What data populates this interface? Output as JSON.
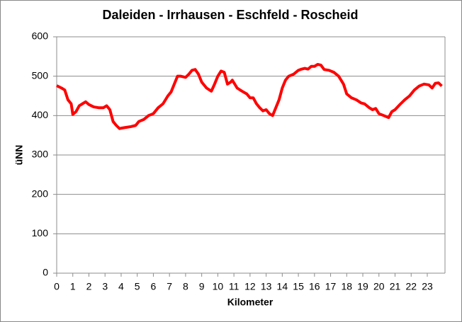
{
  "chart_data": {
    "type": "line",
    "title": "Daleiden - Irrhausen - Eschfeld - Roscheid",
    "x_label": "Kilometer",
    "y_label": "üNN",
    "x": [
      0,
      0.3,
      0.5,
      0.7,
      0.9,
      1.0,
      1.2,
      1.4,
      1.6,
      1.8,
      2.0,
      2.3,
      2.6,
      2.9,
      3.1,
      3.3,
      3.5,
      3.7,
      3.9,
      4.0,
      4.3,
      4.6,
      4.9,
      5.1,
      5.4,
      5.7,
      6.0,
      6.3,
      6.6,
      6.9,
      7.1,
      7.3,
      7.5,
      7.7,
      8.0,
      8.2,
      8.4,
      8.6,
      8.8,
      9.0,
      9.3,
      9.6,
      9.8,
      10.0,
      10.2,
      10.4,
      10.6,
      10.8,
      10.9,
      11.2,
      11.5,
      11.8,
      12.0,
      12.2,
      12.4,
      12.6,
      12.8,
      13.0,
      13.2,
      13.4,
      13.6,
      13.8,
      14.0,
      14.2,
      14.4,
      14.7,
      15.0,
      15.2,
      15.4,
      15.6,
      15.8,
      16.0,
      16.2,
      16.4,
      16.6,
      16.9,
      17.2,
      17.5,
      17.8,
      18.0,
      18.3,
      18.6,
      18.9,
      19.1,
      19.4,
      19.6,
      19.8,
      20.0,
      20.3,
      20.6,
      20.8,
      21.0,
      21.3,
      21.6,
      21.9,
      22.2,
      22.5,
      22.8,
      23.1,
      23.3,
      23.5,
      23.7,
      23.9
    ],
    "series": [
      {
        "name": "üNN",
        "color": "#ff0000",
        "values": [
          476,
          470,
          465,
          440,
          430,
          403,
          410,
          425,
          430,
          435,
          428,
          422,
          420,
          420,
          425,
          415,
          385,
          375,
          367,
          368,
          370,
          372,
          375,
          385,
          390,
          400,
          405,
          420,
          430,
          450,
          460,
          480,
          500,
          500,
          497,
          505,
          515,
          517,
          505,
          485,
          470,
          462,
          480,
          500,
          513,
          510,
          480,
          485,
          490,
          470,
          462,
          455,
          445,
          445,
          430,
          420,
          412,
          415,
          405,
          400,
          420,
          440,
          470,
          490,
          500,
          505,
          515,
          518,
          520,
          518,
          525,
          525,
          530,
          528,
          517,
          515,
          510,
          500,
          480,
          455,
          445,
          440,
          432,
          430,
          420,
          415,
          418,
          405,
          400,
          395,
          410,
          415,
          428,
          440,
          450,
          465,
          475,
          480,
          478,
          470,
          482,
          483,
          475
        ]
      }
    ],
    "xlim": [
      0,
      24.1
    ],
    "xticks": [
      0,
      1,
      2,
      3,
      4,
      5,
      6,
      7,
      8,
      9,
      10,
      11,
      12,
      13,
      14,
      15,
      16,
      17,
      18,
      19,
      20,
      21,
      22,
      23
    ],
    "ylim": [
      0,
      600
    ],
    "yticks": [
      0,
      100,
      200,
      300,
      400,
      500,
      600
    ],
    "grid": true
  }
}
